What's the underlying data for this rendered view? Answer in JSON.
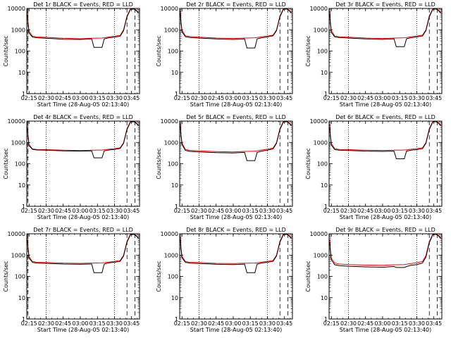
{
  "figure": {
    "layout": "3x3 grid of log-scale count-rate time plots",
    "colors": {
      "events": "#000000",
      "lld": "#ff0000",
      "background": "#ffffff",
      "axes": "#000000"
    }
  },
  "chart_data": [
    {
      "type": "line",
      "title": "Det 1r BLACK = Events, RED = LLD",
      "xlabel": "Start Time (28-Aug-05 02:13:40)",
      "ylabel": "Counts/sec",
      "x_ticks": [
        "02:15",
        "02:30",
        "02:45",
        "03:00",
        "03:15",
        "03:30",
        "03:45"
      ],
      "y_ticks": [
        "1",
        "10",
        "100",
        "1000",
        "10000"
      ],
      "ylim": [
        1,
        10000
      ],
      "y_scale": "log",
      "xlim": [
        "02:13",
        "03:52"
      ],
      "dotted_vlines": [
        "02:30",
        "03:30"
      ],
      "dashed_vlines": [
        "02:14",
        "03:41",
        "03:48"
      ],
      "events_dip_time": [
        "03:12",
        "03:19"
      ],
      "events_dip_value": 150,
      "x": [
        "02:13.7",
        "02:14",
        "02:15",
        "02:18",
        "02:22",
        "02:30",
        "02:45",
        "03:00",
        "03:10",
        "03:12",
        "03:19",
        "03:21",
        "03:25",
        "03:30",
        "03:35",
        "03:38",
        "03:41",
        "03:44",
        "03:47",
        "03:49",
        "03:51"
      ],
      "series": [
        {
          "name": "Events",
          "color": "#000000",
          "values": [
            5000,
            2000,
            700,
            450,
            420,
            400,
            360,
            350,
            370,
            150,
            150,
            370,
            420,
            450,
            500,
            900,
            4000,
            9000,
            9500,
            8000,
            6000
          ]
        },
        {
          "name": "LLD",
          "color": "#ff0000",
          "values": [
            7000,
            2500,
            850,
            500,
            460,
            440,
            400,
            380,
            400,
            400,
            410,
            420,
            460,
            500,
            550,
            1000,
            4500,
            9500,
            10000,
            8500,
            6500
          ]
        }
      ]
    },
    {
      "type": "line",
      "title": "Det 2r BLACK = Events, RED = LLD",
      "xlabel": "Start Time (28-Aug-05 02:13:40)",
      "ylabel": "Counts/sec",
      "x_ticks": [
        "02:15",
        "02:30",
        "02:45",
        "03:00",
        "03:15",
        "03:30",
        "03:45"
      ],
      "y_ticks": [
        "1",
        "10",
        "100",
        "1000",
        "10000"
      ],
      "ylim": [
        1,
        10000
      ],
      "y_scale": "log",
      "xlim": [
        "02:13",
        "03:52"
      ],
      "dotted_vlines": [
        "02:30",
        "03:30"
      ],
      "dashed_vlines": [
        "03:41",
        "03:48"
      ],
      "events_dip_time": [
        "03:12",
        "03:19"
      ],
      "events_dip_value": 140,
      "x": [
        "02:13.7",
        "02:14",
        "02:15",
        "02:18",
        "02:22",
        "02:30",
        "02:45",
        "03:00",
        "03:10",
        "03:12",
        "03:19",
        "03:21",
        "03:25",
        "03:30",
        "03:35",
        "03:38",
        "03:41",
        "03:44",
        "03:47",
        "03:49",
        "03:51"
      ],
      "series": [
        {
          "name": "Events",
          "color": "#000000",
          "values": [
            6000,
            2500,
            800,
            470,
            430,
            410,
            370,
            350,
            370,
            140,
            140,
            370,
            420,
            460,
            520,
            900,
            4000,
            9000,
            9500,
            8000,
            6000
          ]
        },
        {
          "name": "LLD",
          "color": "#ff0000",
          "values": [
            8000,
            3000,
            950,
            520,
            480,
            450,
            410,
            390,
            410,
            410,
            420,
            430,
            470,
            510,
            560,
            1000,
            4500,
            9500,
            10000,
            8500,
            6500
          ]
        }
      ]
    },
    {
      "type": "line",
      "title": "Det 3r BLACK = Events, RED = LLD",
      "xlabel": "Start Time (28-Aug-05 02:13:40)",
      "ylabel": "Counts/sec",
      "x_ticks": [
        "02:15",
        "02:30",
        "02:45",
        "03:00",
        "03:15",
        "03:30",
        "03:45"
      ],
      "y_ticks": [
        "1",
        "10",
        "100",
        "1000",
        "10000"
      ],
      "ylim": [
        1,
        10000
      ],
      "y_scale": "log",
      "xlim": [
        "02:13",
        "03:52"
      ],
      "dotted_vlines": [
        "02:30",
        "03:30"
      ],
      "dashed_vlines": [
        "03:41",
        "03:48"
      ],
      "events_dip_time": [
        "03:12",
        "03:19"
      ],
      "events_dip_value": 160,
      "x": [
        "02:13.7",
        "02:14",
        "02:15",
        "02:18",
        "02:22",
        "02:30",
        "02:45",
        "03:00",
        "03:10",
        "03:12",
        "03:19",
        "03:21",
        "03:25",
        "03:30",
        "03:35",
        "03:38",
        "03:41",
        "03:44",
        "03:47",
        "03:49",
        "03:51"
      ],
      "series": [
        {
          "name": "Events",
          "color": "#000000",
          "values": [
            5500,
            2200,
            750,
            460,
            430,
            410,
            370,
            355,
            375,
            160,
            160,
            375,
            425,
            460,
            510,
            900,
            4000,
            9000,
            9500,
            8000,
            6000
          ]
        },
        {
          "name": "LLD",
          "color": "#ff0000",
          "values": [
            7500,
            2800,
            900,
            510,
            470,
            450,
            410,
            390,
            410,
            410,
            420,
            430,
            470,
            510,
            560,
            1000,
            4500,
            9500,
            10000,
            8500,
            6500
          ]
        }
      ]
    },
    {
      "type": "line",
      "title": "Det 4r BLACK = Events, RED = LLD",
      "xlabel": "Start Time (28-Aug-05 02:13:40)",
      "ylabel": "Counts/sec",
      "x_ticks": [
        "02:15",
        "02:30",
        "02:45",
        "03:00",
        "03:15",
        "03:30",
        "03:45"
      ],
      "y_ticks": [
        "1",
        "10",
        "100",
        "1000",
        "10000"
      ],
      "ylim": [
        1,
        10000
      ],
      "y_scale": "log",
      "xlim": [
        "02:13",
        "03:52"
      ],
      "dotted_vlines": [
        "02:30",
        "03:30"
      ],
      "dashed_vlines": [
        "02:14",
        "03:41",
        "03:48"
      ],
      "events_dip_time": [
        "03:12",
        "03:19"
      ],
      "events_dip_value": 190,
      "x": [
        "02:13.7",
        "02:14",
        "02:15",
        "02:18",
        "02:22",
        "02:30",
        "02:45",
        "03:00",
        "03:10",
        "03:12",
        "03:19",
        "03:21",
        "03:25",
        "03:30",
        "03:35",
        "03:38",
        "03:41",
        "03:44",
        "03:47",
        "03:49",
        "03:51"
      ],
      "series": [
        {
          "name": "Events",
          "color": "#000000",
          "values": [
            4500,
            2000,
            700,
            470,
            440,
            430,
            400,
            390,
            400,
            190,
            190,
            400,
            440,
            470,
            520,
            900,
            4000,
            9000,
            9500,
            8000,
            6000
          ]
        },
        {
          "name": "LLD",
          "color": "#ff0000",
          "values": [
            6000,
            2400,
            800,
            500,
            470,
            460,
            430,
            420,
            430,
            430,
            440,
            450,
            480,
            510,
            560,
            1000,
            4500,
            9500,
            10000,
            8500,
            6500
          ]
        }
      ]
    },
    {
      "type": "line",
      "title": "Det 5r BLACK = Events, RED = LLD",
      "xlabel": "Start Time (28-Aug-05 02:13:40)",
      "ylabel": "Counts/sec",
      "x_ticks": [
        "02:15",
        "02:30",
        "02:45",
        "03:00",
        "03:15",
        "03:30",
        "03:45"
      ],
      "y_ticks": [
        "1",
        "10",
        "100",
        "1000",
        "10000"
      ],
      "ylim": [
        1,
        10000
      ],
      "y_scale": "log",
      "xlim": [
        "02:13",
        "03:52"
      ],
      "dotted_vlines": [
        "02:30",
        "03:30"
      ],
      "dashed_vlines": [
        "03:41",
        "03:48"
      ],
      "events_dip_time": [
        "03:12",
        "03:19"
      ],
      "events_dip_value": 140,
      "x": [
        "02:13.7",
        "02:14",
        "02:15",
        "02:18",
        "02:22",
        "02:30",
        "02:45",
        "03:00",
        "03:10",
        "03:12",
        "03:19",
        "03:21",
        "03:25",
        "03:30",
        "03:35",
        "03:38",
        "03:41",
        "03:44",
        "03:47",
        "03:49",
        "03:51"
      ],
      "series": [
        {
          "name": "Events",
          "color": "#000000",
          "values": [
            6000,
            2500,
            800,
            420,
            380,
            360,
            330,
            320,
            340,
            140,
            140,
            340,
            390,
            430,
            500,
            900,
            4000,
            9000,
            9500,
            8000,
            6000
          ]
        },
        {
          "name": "LLD",
          "color": "#ff0000",
          "values": [
            8000,
            3000,
            950,
            470,
            420,
            400,
            370,
            360,
            380,
            380,
            390,
            400,
            440,
            480,
            550,
            1000,
            4500,
            9500,
            10000,
            8500,
            6500
          ]
        }
      ]
    },
    {
      "type": "line",
      "title": "Det 6r BLACK = Events, RED = LLD",
      "xlabel": "Start Time (28-Aug-05 02:13:40)",
      "ylabel": "Counts/sec",
      "x_ticks": [
        "02:15",
        "02:30",
        "02:45",
        "03:00",
        "03:15",
        "03:30",
        "03:45"
      ],
      "y_ticks": [
        "1",
        "10",
        "100",
        "1000",
        "10000"
      ],
      "ylim": [
        1,
        10000
      ],
      "y_scale": "log",
      "xlim": [
        "02:13",
        "03:52"
      ],
      "dotted_vlines": [
        "02:30",
        "03:30"
      ],
      "dashed_vlines": [
        "03:41",
        "03:48"
      ],
      "events_dip_time": [
        "03:12",
        "03:19"
      ],
      "events_dip_value": 170,
      "x": [
        "02:13.7",
        "02:14",
        "02:15",
        "02:18",
        "02:22",
        "02:30",
        "02:45",
        "03:00",
        "03:10",
        "03:12",
        "03:19",
        "03:21",
        "03:25",
        "03:30",
        "03:35",
        "03:38",
        "03:41",
        "03:44",
        "03:47",
        "03:49",
        "03:51"
      ],
      "series": [
        {
          "name": "Events",
          "color": "#000000",
          "values": [
            5000,
            2200,
            750,
            460,
            430,
            420,
            390,
            380,
            390,
            170,
            170,
            390,
            430,
            460,
            510,
            900,
            4000,
            9000,
            9500,
            8000,
            6000
          ]
        },
        {
          "name": "LLD",
          "color": "#ff0000",
          "values": [
            7000,
            2700,
            880,
            510,
            470,
            460,
            430,
            420,
            430,
            430,
            440,
            450,
            480,
            510,
            560,
            1000,
            4500,
            9500,
            10000,
            8500,
            6500
          ]
        }
      ]
    },
    {
      "type": "line",
      "title": "Det 7r BLACK = Events, RED = LLD",
      "xlabel": "Start Time (28-Aug-05 02:13:40)",
      "ylabel": "Counts/sec",
      "x_ticks": [
        "02:15",
        "02:30",
        "02:45",
        "03:00",
        "03:15",
        "03:30",
        "03:45"
      ],
      "y_ticks": [
        "1",
        "10",
        "100",
        "1000",
        "10000"
      ],
      "ylim": [
        1,
        10000
      ],
      "y_scale": "log",
      "xlim": [
        "02:13",
        "03:52"
      ],
      "dotted_vlines": [
        "02:30",
        "03:30"
      ],
      "dashed_vlines": [
        "02:14",
        "03:41",
        "03:48"
      ],
      "events_dip_time": [
        "03:12",
        "03:19"
      ],
      "events_dip_value": 150,
      "x": [
        "02:13.7",
        "02:14",
        "02:15",
        "02:18",
        "02:22",
        "02:30",
        "02:45",
        "03:00",
        "03:10",
        "03:12",
        "03:19",
        "03:21",
        "03:25",
        "03:30",
        "03:35",
        "03:38",
        "03:41",
        "03:44",
        "03:47",
        "03:49",
        "03:51"
      ],
      "series": [
        {
          "name": "Events",
          "color": "#000000",
          "values": [
            5000,
            2100,
            720,
            450,
            420,
            410,
            380,
            370,
            380,
            150,
            150,
            380,
            430,
            460,
            510,
            900,
            4000,
            9000,
            9500,
            8000,
            6000
          ]
        },
        {
          "name": "LLD",
          "color": "#ff0000",
          "values": [
            6500,
            2600,
            850,
            500,
            460,
            450,
            420,
            410,
            420,
            420,
            430,
            440,
            470,
            510,
            560,
            1000,
            4500,
            9500,
            10000,
            8500,
            6500
          ]
        }
      ]
    },
    {
      "type": "line",
      "title": "Det 8r BLACK = Events, RED = LLD",
      "xlabel": "Start Time (28-Aug-05 02:13:40)",
      "ylabel": "Counts/sec",
      "x_ticks": [
        "02:15",
        "02:30",
        "02:45",
        "03:00",
        "03:15",
        "03:30",
        "03:45"
      ],
      "y_ticks": [
        "1",
        "10",
        "100",
        "1000",
        "10000"
      ],
      "ylim": [
        1,
        10000
      ],
      "y_scale": "log",
      "xlim": [
        "02:13",
        "03:52"
      ],
      "dotted_vlines": [
        "02:30",
        "03:30"
      ],
      "dashed_vlines": [
        "03:41",
        "03:48"
      ],
      "events_dip_time": [
        "03:12",
        "03:19"
      ],
      "events_dip_value": 150,
      "x": [
        "02:13.7",
        "02:14",
        "02:15",
        "02:18",
        "02:22",
        "02:30",
        "02:45",
        "03:00",
        "03:10",
        "03:12",
        "03:19",
        "03:21",
        "03:25",
        "03:30",
        "03:35",
        "03:38",
        "03:41",
        "03:44",
        "03:47",
        "03:49",
        "03:51"
      ],
      "series": [
        {
          "name": "Events",
          "color": "#000000",
          "values": [
            5500,
            2300,
            760,
            450,
            420,
            400,
            370,
            360,
            375,
            150,
            150,
            375,
            425,
            460,
            510,
            900,
            4000,
            9000,
            9500,
            8000,
            6000
          ]
        },
        {
          "name": "LLD",
          "color": "#ff0000",
          "values": [
            7500,
            2800,
            900,
            500,
            460,
            450,
            410,
            400,
            415,
            415,
            425,
            435,
            470,
            510,
            560,
            1000,
            4500,
            9500,
            10000,
            8500,
            6500
          ]
        }
      ]
    },
    {
      "type": "line",
      "title": "Det 9r BLACK = Events, RED = LLD",
      "xlabel": "Start Time (28-Aug-05 02:13:40)",
      "ylabel": "Counts/sec",
      "x_ticks": [
        "02:15",
        "02:30",
        "02:45",
        "03:00",
        "03:15",
        "03:30",
        "03:45"
      ],
      "y_ticks": [
        "1",
        "10",
        "100",
        "1000",
        "10000"
      ],
      "ylim": [
        1,
        10000
      ],
      "y_scale": "log",
      "xlim": [
        "02:13",
        "03:52"
      ],
      "dotted_vlines": [
        "02:30",
        "03:30"
      ],
      "dashed_vlines": [
        "03:41",
        "03:48"
      ],
      "events_dip_time": [
        "03:12",
        "03:19"
      ],
      "events_dip_value": 260,
      "x": [
        "02:13.7",
        "02:14",
        "02:15",
        "02:18",
        "02:22",
        "02:30",
        "02:45",
        "03:00",
        "03:10",
        "03:12",
        "03:19",
        "03:21",
        "03:25",
        "03:30",
        "03:35",
        "03:38",
        "03:41",
        "03:44",
        "03:47",
        "03:49",
        "03:51"
      ],
      "series": [
        {
          "name": "Events",
          "color": "#000000",
          "values": [
            4000,
            1700,
            600,
            350,
            320,
            300,
            280,
            270,
            290,
            260,
            260,
            290,
            330,
            360,
            420,
            800,
            3800,
            9000,
            9500,
            8000,
            6000
          ]
        },
        {
          "name": "LLD",
          "color": "#ff0000",
          "values": [
            5500,
            2100,
            720,
            420,
            380,
            360,
            340,
            330,
            350,
            350,
            360,
            370,
            400,
            440,
            500,
            950,
            4300,
            9500,
            10000,
            8500,
            6500
          ]
        }
      ]
    }
  ]
}
